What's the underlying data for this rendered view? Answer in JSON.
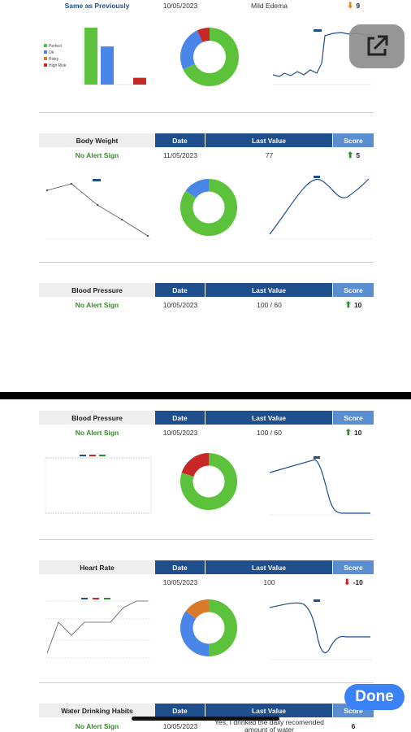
{
  "sections": {
    "edema": {
      "alert": "Same as Previously",
      "date": "10/05/2023",
      "last_value": "Mild Edema",
      "score": "9",
      "legend": [
        "Perfect",
        "Ok",
        "Risky",
        "High Risk"
      ]
    },
    "body_weight_1": {
      "name": "Body Weight",
      "alert": "No Alert Sign",
      "date": "11/05/2023",
      "last_value": "77",
      "score": "5"
    },
    "blood_pressure_1": {
      "name": "Blood Pressure",
      "alert": "No Alert Sign",
      "date": "10/05/2023",
      "last_value": "100 / 60",
      "score": "10"
    },
    "blood_pressure_2": {
      "name": "Blood Pressure",
      "alert": "No Alert Sign",
      "date": "10/05/2023",
      "last_value": "100 / 60",
      "score": "10"
    },
    "heart_rate": {
      "name": "Heart Rate",
      "alert": "",
      "date": "10/05/2023",
      "last_value": "100",
      "score": "-10"
    },
    "water": {
      "name": "Water Drinking Habits",
      "alert": "No Alert Sign",
      "date": "10/05/2023",
      "last_value": "Yes, I drinked the daily recomended amount of water",
      "score": "6"
    }
  },
  "headers": {
    "date": "Date",
    "last_value": "Last Value",
    "score": "Score"
  },
  "buttons": {
    "done": "Done"
  },
  "icons": {
    "external": "external-link-icon",
    "up": "arrow-up-icon",
    "down": "arrow-down-icon"
  },
  "colors": {
    "header_blue": "#1f4e8c",
    "score_blue": "#5b8ed0",
    "green": "#5cc23c",
    "blue": "#4a86e8",
    "red": "#c62828",
    "orange": "#d97b2b"
  },
  "chart_data": [
    {
      "type": "bar",
      "categories": [
        "Perfect",
        "Ok",
        "Risky",
        "High Risk"
      ],
      "values": [
        100,
        67,
        0,
        12
      ],
      "ylim": [
        0,
        100
      ]
    },
    {
      "type": "pie",
      "labels": [
        "Perfect",
        "Ok",
        "High Risk"
      ],
      "values": [
        68,
        25,
        7
      ]
    },
    {
      "type": "pie",
      "labels": [
        "Perfect",
        "Ok"
      ],
      "values": [
        85,
        15
      ]
    },
    {
      "type": "pie",
      "labels": [
        "Perfect",
        "High Risk"
      ],
      "values": [
        80,
        20
      ]
    },
    {
      "type": "pie",
      "labels": [
        "Perfect",
        "Ok",
        "Risky"
      ],
      "values": [
        50,
        35,
        15
      ]
    }
  ]
}
